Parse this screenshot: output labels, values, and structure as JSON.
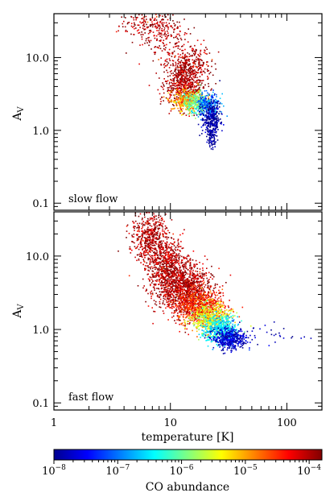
{
  "chart_data": [
    {
      "type": "scatter",
      "panel_label": "slow flow",
      "xscale": "log",
      "yscale": "log",
      "xlim": [
        1,
        200
      ],
      "ylim": [
        0.08,
        40
      ],
      "ylabel": "A",
      "ylabel_sub": "V",
      "yticks": [
        0.1,
        1.0,
        10.0
      ],
      "ytick_labels": [
        "0.1",
        "1.0",
        "10.0"
      ],
      "color_variable": "CO abundance",
      "clusters": [
        {
          "name_hint": "",
          "x_center": 6.2,
          "x_spread": 0.12,
          "y_center": 28,
          "y_spread": 0.1,
          "abundance_log10": -4.0,
          "count": 160
        },
        {
          "name_hint": "",
          "x_center": 9.0,
          "x_spread": 0.1,
          "y_center": 20,
          "y_spread": 0.15,
          "abundance_log10": -4.0,
          "count": 150
        },
        {
          "name_hint": "",
          "x_center": 14,
          "x_spread": 0.1,
          "y_center": 8,
          "y_spread": 0.15,
          "abundance_log10": -4.0,
          "count": 360
        },
        {
          "name_hint": "",
          "x_center": 13,
          "x_spread": 0.08,
          "y_center": 4,
          "y_spread": 0.15,
          "abundance_log10": -4.0,
          "count": 520
        },
        {
          "name_hint": "",
          "x_center": 14,
          "x_spread": 0.07,
          "y_center": 2.6,
          "y_spread": 0.07,
          "abundance_log10": -5.0,
          "count": 320
        },
        {
          "name_hint": "",
          "x_center": 17,
          "x_spread": 0.06,
          "y_center": 2.4,
          "y_spread": 0.07,
          "abundance_log10": -6.0,
          "count": 280
        },
        {
          "name_hint": "",
          "x_center": 21,
          "x_spread": 0.05,
          "y_center": 2.2,
          "y_spread": 0.08,
          "abundance_log10": -7.0,
          "count": 260
        },
        {
          "name_hint": "",
          "x_center": 22,
          "x_spread": 0.04,
          "y_center": 1.5,
          "y_spread": 0.12,
          "abundance_log10": -8.0,
          "count": 300
        },
        {
          "name_hint": "",
          "x_center": 22.5,
          "x_spread": 0.02,
          "y_center": 0.85,
          "y_spread": 0.08,
          "abundance_log10": -8.0,
          "count": 90
        }
      ]
    },
    {
      "type": "scatter",
      "panel_label": "fast flow",
      "xscale": "log",
      "yscale": "log",
      "xlim": [
        1,
        200
      ],
      "ylim": [
        0.08,
        40
      ],
      "xlabel": "temperature [K]",
      "ylabel": "A",
      "ylabel_sub": "V",
      "xticks": [
        1,
        10,
        100
      ],
      "xtick_labels": [
        "1",
        "10",
        "100"
      ],
      "yticks": [
        0.1,
        1.0,
        10.0
      ],
      "ytick_labels": [
        "0.1",
        "1.0",
        "10.0"
      ],
      "color_variable": "CO abundance",
      "clusters": [
        {
          "name_hint": "",
          "x_center": 6.5,
          "x_spread": 0.08,
          "y_center": 20,
          "y_spread": 0.15,
          "abundance_log10": -4.0,
          "count": 420
        },
        {
          "name_hint": "",
          "x_center": 9.0,
          "x_spread": 0.1,
          "y_center": 8,
          "y_spread": 0.17,
          "abundance_log10": -4.0,
          "count": 700
        },
        {
          "name_hint": "",
          "x_center": 13,
          "x_spread": 0.12,
          "y_center": 3.5,
          "y_spread": 0.17,
          "abundance_log10": -4.0,
          "count": 1200
        },
        {
          "name_hint": "",
          "x_center": 18,
          "x_spread": 0.1,
          "y_center": 2.0,
          "y_spread": 0.12,
          "abundance_log10": -4.5,
          "count": 700
        },
        {
          "name_hint": "",
          "x_center": 22,
          "x_spread": 0.08,
          "y_center": 1.4,
          "y_spread": 0.1,
          "abundance_log10": -5.5,
          "count": 500
        },
        {
          "name_hint": "",
          "x_center": 27,
          "x_spread": 0.07,
          "y_center": 1.0,
          "y_spread": 0.09,
          "abundance_log10": -6.5,
          "count": 500
        },
        {
          "name_hint": "",
          "x_center": 32,
          "x_spread": 0.07,
          "y_center": 0.75,
          "y_spread": 0.07,
          "abundance_log10": -7.7,
          "count": 420
        },
        {
          "name_hint": "",
          "x_center": 65,
          "x_spread": 0.18,
          "y_center": 0.85,
          "y_spread": 0.07,
          "abundance_log10": -7.8,
          "count": 40
        }
      ]
    }
  ],
  "colorbar": {
    "label": "CO abundance",
    "scale": "log",
    "range_log10": [
      -8,
      -3.8
    ],
    "ticks": [
      {
        "base": "10",
        "exp": "−8",
        "value_log10": -8
      },
      {
        "base": "10",
        "exp": "−7",
        "value_log10": -7
      },
      {
        "base": "10",
        "exp": "−6",
        "value_log10": -6
      },
      {
        "base": "10",
        "exp": "−5",
        "value_log10": -5
      },
      {
        "base": "10",
        "exp": "−4",
        "value_log10": -4
      }
    ],
    "colormap": [
      "#00008f",
      "#0000ff",
      "#0080ff",
      "#00ffff",
      "#80ff80",
      "#ffff00",
      "#ff8000",
      "#ff0000",
      "#800000"
    ]
  }
}
